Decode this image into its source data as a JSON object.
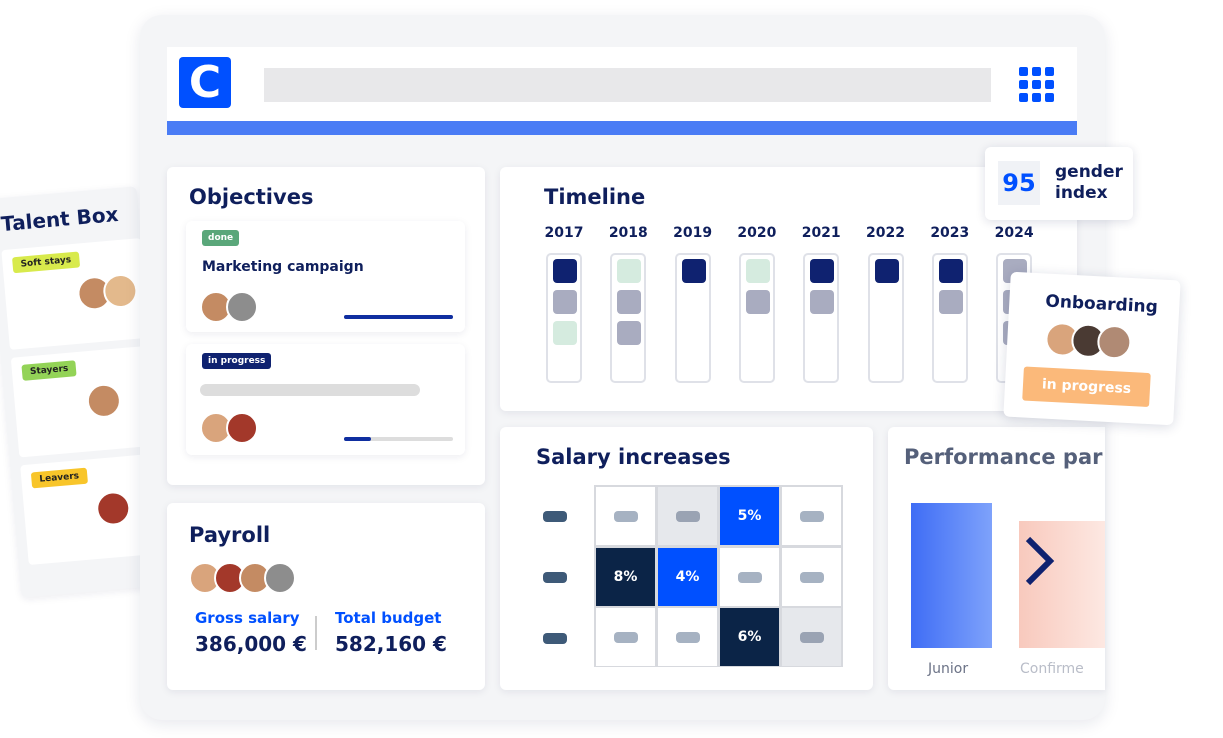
{
  "logo": "C",
  "talent_box": {
    "title": "Talent Box",
    "groups": [
      {
        "label": "Soft stays",
        "color": "#d8ea4c"
      },
      {
        "label": "Stayers",
        "color": "#93d357"
      },
      {
        "label": "Leavers",
        "color": "#f8c52a"
      }
    ]
  },
  "objectives": {
    "title": "Objectives",
    "items": [
      {
        "status": "done",
        "status_color": "#5aa77a",
        "title": "Marketing campaign",
        "progress": 100
      },
      {
        "status": "in progress",
        "status_color": "#0f2270",
        "progress": 25
      }
    ]
  },
  "payroll": {
    "title": "Payroll",
    "gross_label": "Gross salary",
    "gross_value": "386,000 €",
    "budget_label": "Total budget",
    "budget_value": "582,160 €"
  },
  "timeline": {
    "title": "Timeline",
    "years": [
      {
        "year": "2017",
        "blocks": [
          "#0f2270",
          "#a9acc0",
          "#d5ebdf"
        ]
      },
      {
        "year": "2018",
        "blocks": [
          "#d5ebdf",
          "#a9acc0",
          "#a9acc0"
        ]
      },
      {
        "year": "2019",
        "blocks": [
          "#0f2270"
        ]
      },
      {
        "year": "2020",
        "blocks": [
          "#d5ebdf",
          "#a9acc0"
        ]
      },
      {
        "year": "2021",
        "blocks": [
          "#0f2270",
          "#a9acc0"
        ]
      },
      {
        "year": "2022",
        "blocks": [
          "#0f2270"
        ]
      },
      {
        "year": "2023",
        "blocks": [
          "#0f2270",
          "#a9acc0"
        ]
      },
      {
        "year": "2024",
        "blocks": [
          "#a9acc0",
          "#a9acc0",
          "#a9acc0"
        ]
      }
    ]
  },
  "gender_index": {
    "value": 95,
    "label_lines": [
      "gender",
      "index"
    ]
  },
  "onboarding": {
    "title": "Onboarding",
    "status": "in progress"
  },
  "salary": {
    "title": "Salary increases",
    "rows": [
      [
        {
          "fill": "#ffffff"
        },
        {
          "fill": "#e6e8ec"
        },
        {
          "fill": "#0050ff",
          "label": "5%"
        },
        {
          "fill": "#ffffff"
        }
      ],
      [
        {
          "fill": "#0b2447",
          "label": "8%"
        },
        {
          "fill": "#0050ff",
          "label": "4%"
        },
        {
          "fill": "#ffffff"
        },
        {
          "fill": "#ffffff"
        }
      ],
      [
        {
          "fill": "#ffffff"
        },
        {
          "fill": "#ffffff"
        },
        {
          "fill": "#0b2447",
          "label": "6%"
        },
        {
          "fill": "#e6e8ec"
        }
      ]
    ]
  },
  "performance": {
    "title": "Performance par",
    "levels": [
      "Junior",
      "Confirme"
    ]
  }
}
